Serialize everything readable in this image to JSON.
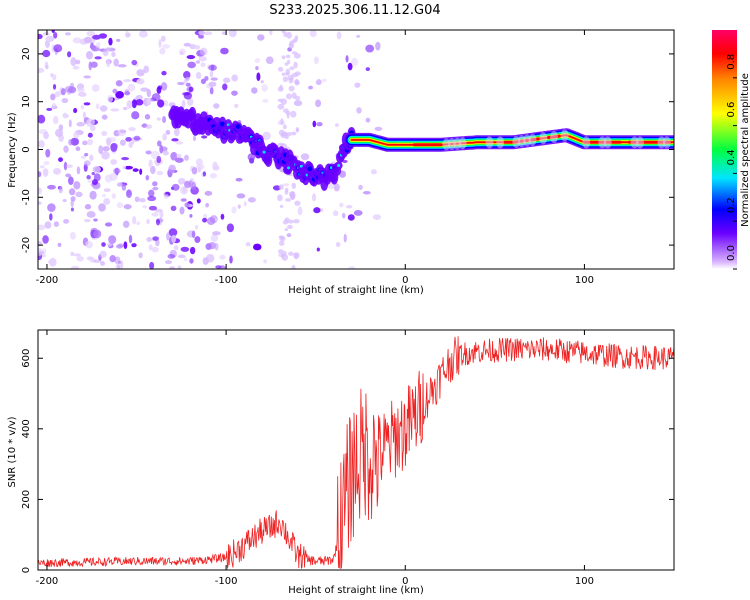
{
  "title": "S233.2025.306.11.12.G04",
  "chart_data": [
    {
      "type": "heatmap",
      "xlabel": "Height of straight line (km)",
      "ylabel": "Frequency (Hz)",
      "xlim": [
        -205,
        150
      ],
      "ylim": [
        -25,
        25
      ],
      "xticks": [
        "-200",
        "-100",
        "0",
        "100"
      ],
      "yticks": [
        "20",
        "10",
        "0",
        "-10",
        "-20"
      ],
      "ridge": {
        "x": [
          -130,
          -120,
          -110,
          -100,
          -90,
          -80,
          -70,
          -60,
          -50,
          -45,
          -40,
          -35,
          -30,
          -25,
          -20,
          -10,
          0,
          10,
          20,
          40,
          60,
          80,
          90,
          100,
          120,
          150
        ],
        "y": [
          7,
          6,
          5,
          4,
          3,
          0,
          -2,
          -4,
          -5,
          -6,
          -5,
          0,
          2,
          2,
          2,
          1,
          1,
          1,
          1,
          1.5,
          1.5,
          2.5,
          3,
          1.5,
          1.5,
          1.5
        ]
      },
      "colorbar": {
        "label": "Normalized spectral amplitude",
        "ticks": [
          "0.0",
          "0.2",
          "0.4",
          "0.6",
          "0.8"
        ]
      }
    },
    {
      "type": "line",
      "xlabel": "Height of straight line (km)",
      "ylabel": "SNR (10 * v/v)",
      "xlim": [
        -205,
        150
      ],
      "ylim": [
        0,
        680
      ],
      "xticks": [
        "-200",
        "-100",
        "0",
        "100"
      ],
      "yticks": [
        "0",
        "200",
        "400",
        "600"
      ],
      "series": [
        {
          "name": "SNR",
          "color": "#ee2222",
          "x": [
            -205,
            -180,
            -150,
            -120,
            -100,
            -95,
            -90,
            -85,
            -80,
            -75,
            -70,
            -65,
            -60,
            -55,
            -50,
            -45,
            -40,
            -35,
            -32,
            -30,
            -28,
            -25,
            -22,
            -20,
            -18,
            -15,
            -12,
            -10,
            -5,
            0,
            5,
            10,
            15,
            20,
            25,
            30,
            40,
            60,
            80,
            100,
            120,
            150
          ],
          "values": [
            20,
            22,
            25,
            25,
            35,
            50,
            70,
            90,
            110,
            120,
            140,
            90,
            40,
            30,
            25,
            25,
            30,
            150,
            230,
            270,
            300,
            320,
            340,
            330,
            320,
            330,
            340,
            350,
            380,
            400,
            430,
            470,
            510,
            550,
            590,
            610,
            620,
            625,
            625,
            615,
            605,
            600
          ]
        }
      ]
    }
  ]
}
